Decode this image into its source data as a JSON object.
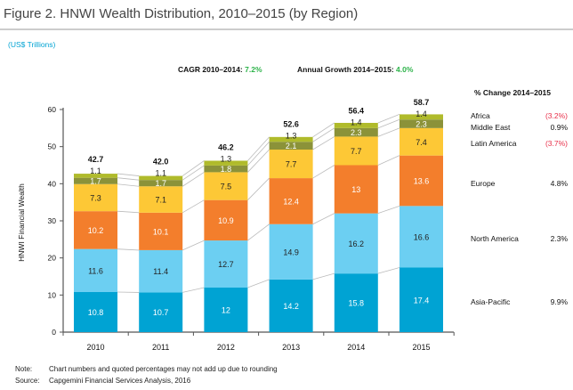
{
  "title": "Figure 2. HNWI Wealth Distribution, 2010–2015 (by Region)",
  "unit_label": "(US$ Trillions)",
  "cagr": {
    "label": "CAGR 2010–2014: ",
    "value": "7.2%"
  },
  "annual_growth": {
    "label": "Annual Growth 2014–2015: ",
    "value": "4.0%"
  },
  "change_header": "% Change 2014–2015",
  "changes": [
    {
      "region": "Africa",
      "value": "(3.2%)",
      "negative": true
    },
    {
      "region": "Middle East",
      "value": "0.9%",
      "negative": false
    },
    {
      "region": "Latin America",
      "value": "(3.7%)",
      "negative": true
    },
    {
      "region": "Europe",
      "value": "4.8%",
      "negative": false
    },
    {
      "region": "North America",
      "value": "2.3%",
      "negative": false
    },
    {
      "region": "Asia-Pacific",
      "value": "9.9%",
      "negative": false
    }
  ],
  "note": {
    "label": "Note:",
    "text": "Chart numbers and quoted percentages may not add up due to rounding"
  },
  "source": {
    "label": "Source:",
    "text": "Capgemini Financial Services Analysis, 2016"
  },
  "colors": {
    "accent_green": "#2db34a",
    "negative_red": "#e8304a"
  },
  "chart_data": {
    "type": "bar",
    "stacked": true,
    "ylabel": "HNWI Financial Wealth",
    "ylim": [
      0,
      60
    ],
    "yticks": [
      0,
      10,
      20,
      30,
      40,
      50,
      60
    ],
    "categories": [
      "2010",
      "2011",
      "2012",
      "2013",
      "2014",
      "2015"
    ],
    "totals": [
      "42.7",
      "42.0",
      "46.2",
      "52.6",
      "56.4",
      "58.7"
    ],
    "series": [
      {
        "name": "Asia-Pacific",
        "color": "#00a3d3",
        "label_color": "#ffffff",
        "values": [
          10.8,
          10.7,
          12.0,
          14.2,
          15.8,
          17.4
        ]
      },
      {
        "name": "North America",
        "color": "#6ccff2",
        "label_color": "#222222",
        "values": [
          11.6,
          11.4,
          12.7,
          14.9,
          16.2,
          16.6
        ]
      },
      {
        "name": "Europe",
        "color": "#f37e2c",
        "label_color": "#ffffff",
        "values": [
          10.2,
          10.1,
          10.9,
          12.4,
          13.0,
          13.6
        ]
      },
      {
        "name": "Latin America",
        "color": "#fdc836",
        "label_color": "#222222",
        "values": [
          7.3,
          7.1,
          7.5,
          7.7,
          7.7,
          7.4
        ]
      },
      {
        "name": "Middle East",
        "color": "#8b9239",
        "label_color": "#ffffff",
        "values": [
          1.7,
          1.7,
          1.8,
          2.1,
          2.3,
          2.3
        ]
      },
      {
        "name": "Africa",
        "color": "#b0bb2b",
        "label_color": "#222222",
        "values": [
          1.1,
          1.1,
          1.3,
          1.3,
          1.4,
          1.4
        ]
      }
    ]
  }
}
